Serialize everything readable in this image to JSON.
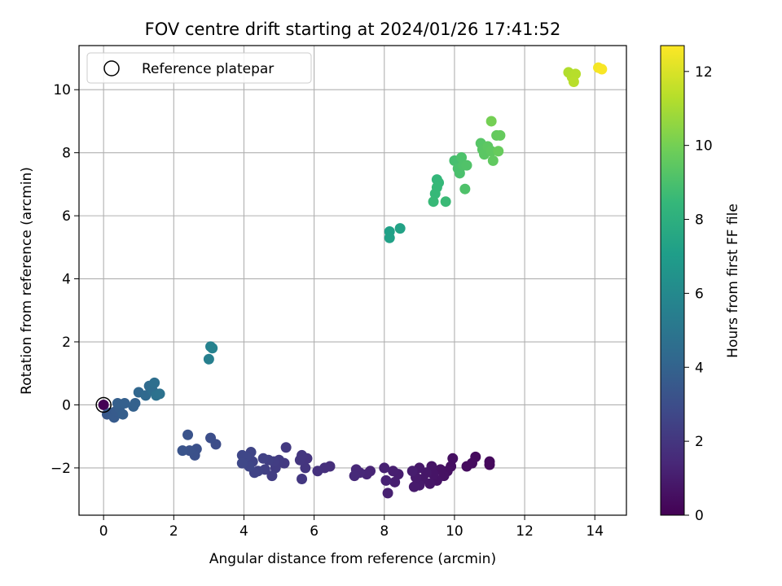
{
  "chart_data": {
    "type": "scatter",
    "title": "FOV centre drift starting at 2024/01/26 17:41:52",
    "xlabel": "Angular distance from reference (arcmin)",
    "ylabel": "Rotation from reference (arcmin)",
    "xlim": [
      -0.7,
      14.9
    ],
    "ylim": [
      -3.5,
      11.4
    ],
    "xticks": [
      0,
      2,
      4,
      6,
      8,
      10,
      12,
      14
    ],
    "yticks": [
      -2,
      0,
      2,
      4,
      6,
      8,
      10
    ],
    "grid": true,
    "legend": {
      "location": "upper-left",
      "entries": [
        "Reference platepar"
      ]
    },
    "reference_point": {
      "x": 0,
      "y": 0
    },
    "colorbar": {
      "label": "Hours from first FF file",
      "range": [
        0,
        12.7
      ],
      "ticks": [
        0,
        2,
        4,
        6,
        8,
        10,
        12
      ],
      "colormap": "viridis"
    },
    "points": [
      {
        "x": 0.0,
        "y": 0.0,
        "hours": 0.05
      },
      {
        "x": 11.0,
        "y": -1.8,
        "hours": 0.3
      },
      {
        "x": 11.0,
        "y": -1.9,
        "hours": 0.3
      },
      {
        "x": 10.6,
        "y": -1.65,
        "hours": 0.35
      },
      {
        "x": 10.5,
        "y": -1.85,
        "hours": 0.4
      },
      {
        "x": 10.35,
        "y": -1.95,
        "hours": 0.4
      },
      {
        "x": 9.95,
        "y": -1.7,
        "hours": 0.5
      },
      {
        "x": 9.9,
        "y": -1.95,
        "hours": 0.5
      },
      {
        "x": 9.8,
        "y": -2.1,
        "hours": 0.55
      },
      {
        "x": 9.7,
        "y": -2.25,
        "hours": 0.6
      },
      {
        "x": 9.6,
        "y": -2.05,
        "hours": 0.6
      },
      {
        "x": 9.5,
        "y": -2.4,
        "hours": 0.65
      },
      {
        "x": 9.4,
        "y": -2.2,
        "hours": 0.7
      },
      {
        "x": 9.35,
        "y": -1.95,
        "hours": 0.7
      },
      {
        "x": 9.3,
        "y": -2.5,
        "hours": 0.75
      },
      {
        "x": 9.2,
        "y": -2.15,
        "hours": 0.8
      },
      {
        "x": 9.1,
        "y": -2.35,
        "hours": 0.8
      },
      {
        "x": 9.0,
        "y": -2.0,
        "hours": 0.85
      },
      {
        "x": 9.0,
        "y": -2.55,
        "hours": 0.9
      },
      {
        "x": 8.9,
        "y": -2.3,
        "hours": 0.9
      },
      {
        "x": 8.85,
        "y": -2.6,
        "hours": 0.95
      },
      {
        "x": 8.8,
        "y": -2.1,
        "hours": 1.0
      },
      {
        "x": 8.4,
        "y": -2.2,
        "hours": 1.05
      },
      {
        "x": 8.3,
        "y": -2.45,
        "hours": 1.1
      },
      {
        "x": 8.25,
        "y": -2.1,
        "hours": 1.1
      },
      {
        "x": 8.1,
        "y": -2.8,
        "hours": 1.15
      },
      {
        "x": 8.05,
        "y": -2.4,
        "hours": 1.2
      },
      {
        "x": 8.0,
        "y": -2.0,
        "hours": 1.2
      },
      {
        "x": 7.6,
        "y": -2.1,
        "hours": 1.3
      },
      {
        "x": 7.5,
        "y": -2.2,
        "hours": 1.35
      },
      {
        "x": 7.3,
        "y": -2.15,
        "hours": 1.4
      },
      {
        "x": 7.2,
        "y": -2.05,
        "hours": 1.45
      },
      {
        "x": 7.15,
        "y": -2.25,
        "hours": 1.5
      },
      {
        "x": 6.45,
        "y": -1.95,
        "hours": 1.7
      },
      {
        "x": 6.3,
        "y": -2.0,
        "hours": 1.75
      },
      {
        "x": 6.1,
        "y": -2.1,
        "hours": 1.8
      },
      {
        "x": 5.8,
        "y": -1.7,
        "hours": 1.9
      },
      {
        "x": 5.75,
        "y": -2.0,
        "hours": 1.95
      },
      {
        "x": 5.65,
        "y": -1.6,
        "hours": 2.0
      },
      {
        "x": 5.6,
        "y": -1.75,
        "hours": 2.0
      },
      {
        "x": 5.65,
        "y": -2.35,
        "hours": 2.05
      },
      {
        "x": 5.2,
        "y": -1.35,
        "hours": 2.1
      },
      {
        "x": 5.15,
        "y": -1.85,
        "hours": 2.15
      },
      {
        "x": 5.0,
        "y": -1.75,
        "hours": 2.2
      },
      {
        "x": 4.9,
        "y": -2.0,
        "hours": 2.25
      },
      {
        "x": 4.85,
        "y": -1.8,
        "hours": 2.3
      },
      {
        "x": 4.8,
        "y": -2.25,
        "hours": 2.3
      },
      {
        "x": 4.7,
        "y": -1.75,
        "hours": 2.35
      },
      {
        "x": 4.6,
        "y": -2.05,
        "hours": 2.4
      },
      {
        "x": 4.55,
        "y": -1.7,
        "hours": 2.45
      },
      {
        "x": 4.4,
        "y": -2.1,
        "hours": 2.5
      },
      {
        "x": 4.3,
        "y": -2.15,
        "hours": 2.55
      },
      {
        "x": 4.25,
        "y": -1.8,
        "hours": 2.55
      },
      {
        "x": 4.2,
        "y": -1.5,
        "hours": 2.6
      },
      {
        "x": 4.15,
        "y": -1.95,
        "hours": 2.65
      },
      {
        "x": 4.05,
        "y": -1.65,
        "hours": 2.7
      },
      {
        "x": 3.95,
        "y": -1.6,
        "hours": 2.7
      },
      {
        "x": 3.95,
        "y": -1.85,
        "hours": 2.75
      },
      {
        "x": 3.2,
        "y": -1.25,
        "hours": 2.95
      },
      {
        "x": 3.05,
        "y": -1.05,
        "hours": 3.0
      },
      {
        "x": 2.65,
        "y": -1.4,
        "hours": 3.1
      },
      {
        "x": 2.6,
        "y": -1.6,
        "hours": 3.15
      },
      {
        "x": 2.45,
        "y": -1.45,
        "hours": 3.2
      },
      {
        "x": 2.4,
        "y": -0.95,
        "hours": 3.25
      },
      {
        "x": 2.25,
        "y": -1.45,
        "hours": 3.3
      },
      {
        "x": 0.1,
        "y": -0.3,
        "hours": 3.5
      },
      {
        "x": 0.2,
        "y": -0.25,
        "hours": 3.55
      },
      {
        "x": 0.3,
        "y": -0.4,
        "hours": 3.6
      },
      {
        "x": 0.35,
        "y": -0.2,
        "hours": 3.6
      },
      {
        "x": 0.45,
        "y": -0.1,
        "hours": 3.7
      },
      {
        "x": 0.55,
        "y": -0.3,
        "hours": 3.75
      },
      {
        "x": 0.4,
        "y": 0.05,
        "hours": 3.8
      },
      {
        "x": 0.6,
        "y": 0.05,
        "hours": 3.85
      },
      {
        "x": 0.85,
        "y": -0.05,
        "hours": 3.9
      },
      {
        "x": 0.9,
        "y": 0.05,
        "hours": 3.95
      },
      {
        "x": 1.0,
        "y": 0.4,
        "hours": 4.2
      },
      {
        "x": 1.2,
        "y": 0.3,
        "hours": 4.3
      },
      {
        "x": 1.3,
        "y": 0.6,
        "hours": 4.4
      },
      {
        "x": 1.4,
        "y": 0.45,
        "hours": 4.5
      },
      {
        "x": 1.45,
        "y": 0.7,
        "hours": 4.6
      },
      {
        "x": 1.5,
        "y": 0.3,
        "hours": 4.7
      },
      {
        "x": 1.6,
        "y": 0.35,
        "hours": 4.8
      },
      {
        "x": 3.0,
        "y": 1.45,
        "hours": 5.5
      },
      {
        "x": 3.05,
        "y": 1.85,
        "hours": 5.6
      },
      {
        "x": 3.1,
        "y": 1.8,
        "hours": 5.65
      },
      {
        "x": 8.15,
        "y": 5.5,
        "hours": 7.2
      },
      {
        "x": 8.15,
        "y": 5.3,
        "hours": 7.25
      },
      {
        "x": 8.45,
        "y": 5.6,
        "hours": 7.3
      },
      {
        "x": 9.5,
        "y": 7.15,
        "hours": 8.4
      },
      {
        "x": 9.55,
        "y": 7.05,
        "hours": 8.45
      },
      {
        "x": 9.5,
        "y": 6.9,
        "hours": 8.5
      },
      {
        "x": 9.45,
        "y": 6.7,
        "hours": 8.5
      },
      {
        "x": 9.4,
        "y": 6.45,
        "hours": 8.55
      },
      {
        "x": 9.75,
        "y": 6.45,
        "hours": 8.6
      },
      {
        "x": 10.0,
        "y": 7.75,
        "hours": 8.9
      },
      {
        "x": 10.1,
        "y": 7.5,
        "hours": 9.0
      },
      {
        "x": 10.15,
        "y": 7.35,
        "hours": 9.0
      },
      {
        "x": 10.2,
        "y": 7.85,
        "hours": 9.05
      },
      {
        "x": 10.25,
        "y": 7.6,
        "hours": 9.1
      },
      {
        "x": 10.3,
        "y": 6.85,
        "hours": 9.1
      },
      {
        "x": 10.35,
        "y": 7.6,
        "hours": 9.15
      },
      {
        "x": 10.75,
        "y": 8.3,
        "hours": 9.3
      },
      {
        "x": 10.8,
        "y": 8.1,
        "hours": 9.35
      },
      {
        "x": 10.85,
        "y": 7.95,
        "hours": 9.4
      },
      {
        "x": 10.95,
        "y": 8.2,
        "hours": 9.45
      },
      {
        "x": 11.05,
        "y": 8.05,
        "hours": 9.5
      },
      {
        "x": 11.1,
        "y": 7.75,
        "hours": 9.55
      },
      {
        "x": 11.2,
        "y": 8.55,
        "hours": 9.6
      },
      {
        "x": 11.3,
        "y": 8.55,
        "hours": 9.65
      },
      {
        "x": 11.25,
        "y": 8.05,
        "hours": 9.7
      },
      {
        "x": 11.05,
        "y": 9.0,
        "hours": 10.0
      },
      {
        "x": 13.25,
        "y": 10.55,
        "hours": 11.2
      },
      {
        "x": 13.35,
        "y": 10.4,
        "hours": 11.25
      },
      {
        "x": 13.45,
        "y": 10.5,
        "hours": 11.3
      },
      {
        "x": 13.4,
        "y": 10.25,
        "hours": 11.35
      },
      {
        "x": 14.1,
        "y": 10.7,
        "hours": 12.5
      },
      {
        "x": 14.2,
        "y": 10.65,
        "hours": 12.6
      }
    ]
  }
}
